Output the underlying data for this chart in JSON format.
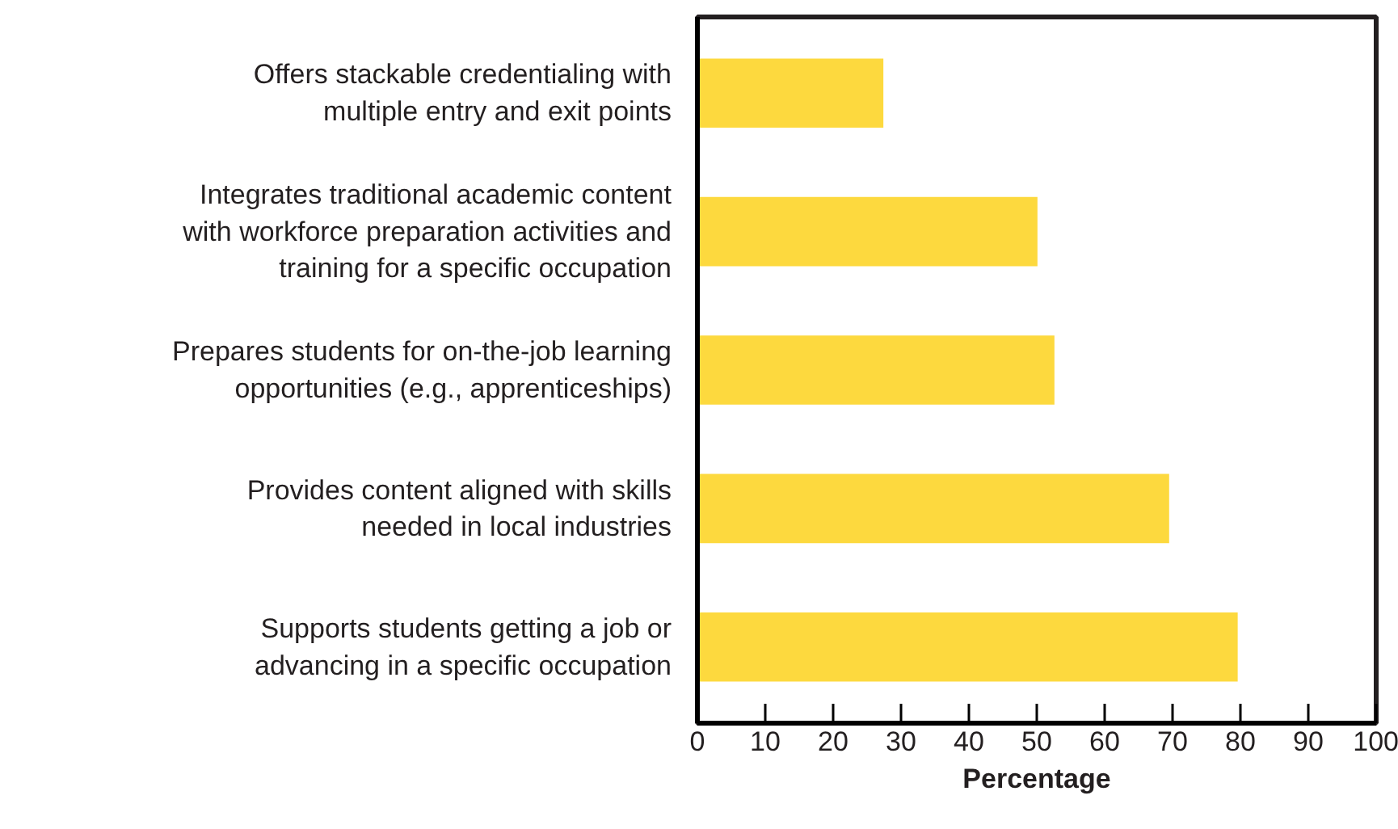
{
  "chart_data": {
    "type": "bar",
    "orientation": "horizontal",
    "xlabel": "Percentage",
    "categories": [
      "Offers stackable credentialing with\nmultiple entry and exit points",
      "Integrates traditional academic content\nwith workforce preparation activities and\ntraining for a specific occupation",
      "Prepares students for on-the-job learning\nopportunities (e.g., apprenticeships)",
      "Provides content aligned with skills\nneeded in local industries",
      "Supports students getting a job or\nadvancing in a specific occupation"
    ],
    "values": [
      27.4,
      50.1,
      52.6,
      69.5,
      79.6
    ],
    "color": "#fdd93e",
    "xlim": [
      0,
      100
    ],
    "xticks": [
      0,
      10,
      20,
      30,
      40,
      50,
      60,
      70,
      80,
      90,
      100
    ],
    "grid": false
  }
}
